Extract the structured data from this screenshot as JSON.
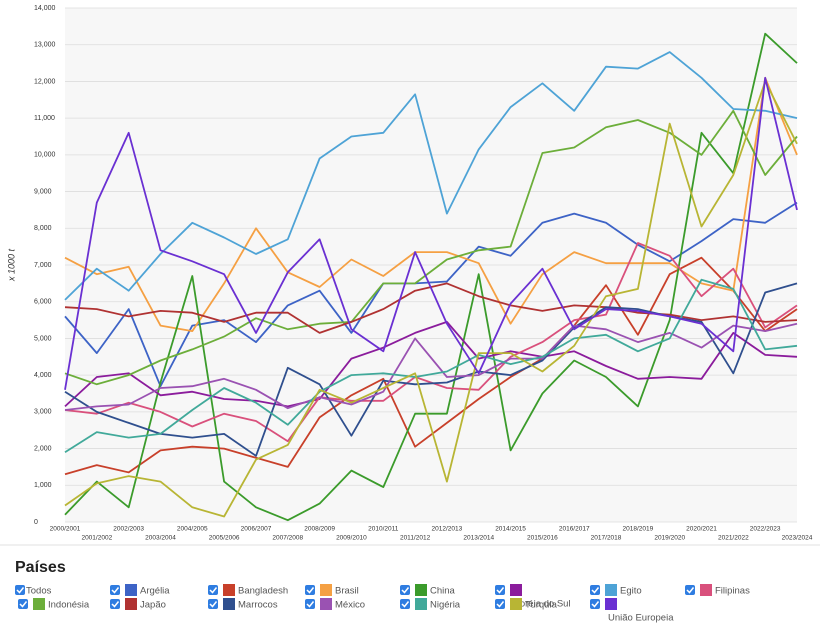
{
  "chart_data": {
    "type": "line",
    "y_label": "x 1000 t",
    "categories": [
      "2000/2001",
      "2001/2002",
      "2002/2003",
      "2003/2004",
      "2004/2005",
      "2005/2006",
      "2006/2007",
      "2007/2008",
      "2008/2009",
      "2009/2010",
      "2010/2011",
      "2011/2012",
      "2012/2013",
      "2013/2014",
      "2014/2015",
      "2015/2016",
      "2016/2017",
      "2017/2018",
      "2018/2019",
      "2019/2020",
      "2020/2021",
      "2021/2022",
      "2022/2023",
      "2023/2024"
    ],
    "ylim": [
      0,
      14000
    ],
    "yticks": [
      0,
      {
        "value": 1000,
        "label": "1,000"
      },
      {
        "value": 2000,
        "label": "2,000"
      },
      {
        "value": 3000,
        "label": "3,000"
      },
      {
        "value": 4000,
        "label": "4,000"
      },
      {
        "value": 5000,
        "label": "5,000"
      },
      {
        "value": 6000,
        "label": "6,000"
      },
      {
        "value": 7000,
        "label": "7,000"
      },
      {
        "value": 8000,
        "label": "8,000"
      },
      {
        "value": 9000,
        "label": "9,000"
      },
      {
        "value": 10000,
        "label": "10,000"
      },
      {
        "value": 11000,
        "label": "11,000"
      },
      {
        "value": 12000,
        "label": "12,000"
      },
      {
        "value": 13000,
        "label": "13,000"
      },
      {
        "value": 14000,
        "label": "14,000"
      }
    ],
    "grid": true,
    "legend_title": "Países",
    "legend_all": "Todos",
    "series": [
      {
        "name": "Argélia",
        "color": "#3d63c6",
        "values": [
          5600,
          4600,
          5800,
          3700,
          5350,
          5500,
          4900,
          5900,
          6300,
          5150,
          6500,
          6500,
          6550,
          7500,
          7250,
          8150,
          8400,
          8150,
          7550,
          7100,
          7650,
          8250,
          8150,
          8700
        ]
      },
      {
        "name": "Bangladesh",
        "color": "#c8402a",
        "values": [
          1300,
          1550,
          1350,
          1950,
          2050,
          2000,
          1750,
          1500,
          2850,
          3450,
          3900,
          2050,
          2700,
          3350,
          3950,
          4450,
          5350,
          6450,
          5100,
          6750,
          7200,
          6300,
          5200,
          5800
        ]
      },
      {
        "name": "Brasil",
        "color": "#f5a043",
        "values": [
          7200,
          6750,
          6950,
          5350,
          5200,
          6500,
          8000,
          6800,
          6400,
          7150,
          6700,
          7350,
          7350,
          7050,
          5400,
          6750,
          7350,
          7050,
          7050,
          7050,
          6500,
          6300,
          12100,
          10000
        ]
      },
      {
        "name": "China",
        "color": "#3b9b2b",
        "values": [
          200,
          1100,
          400,
          3800,
          6700,
          1100,
          400,
          50,
          500,
          1400,
          950,
          2950,
          2950,
          6750,
          1950,
          3500,
          4400,
          3950,
          3150,
          5500,
          10600,
          9500,
          13300,
          12500
        ]
      },
      {
        "name": "Coréia do Sul",
        "color": "#8b1c9c",
        "values": [
          3150,
          3950,
          4050,
          3450,
          3550,
          3350,
          3300,
          3150,
          3350,
          4450,
          4750,
          5150,
          5450,
          4450,
          4650,
          4500,
          4650,
          4250,
          3900,
          3950,
          3900,
          5150,
          4550,
          4500
        ]
      },
      {
        "name": "Egito",
        "color": "#4ea3d6",
        "values": [
          6050,
          6900,
          6300,
          7300,
          8150,
          7750,
          7300,
          7700,
          9900,
          10500,
          10600,
          11650,
          8400,
          10150,
          11300,
          11950,
          11200,
          12400,
          12350,
          12800,
          12100,
          11250,
          11200,
          11000
        ]
      },
      {
        "name": "Filipinas",
        "color": "#d9507c",
        "values": [
          3050,
          2950,
          3250,
          3000,
          2600,
          2950,
          2750,
          2200,
          3400,
          3300,
          3300,
          3950,
          3650,
          3600,
          4500,
          4900,
          5500,
          5650,
          7600,
          7250,
          6150,
          6900,
          5300,
          5900
        ]
      },
      {
        "name": "Indonésia",
        "color": "#6cae3a",
        "values": [
          4050,
          3750,
          4000,
          4400,
          4700,
          5050,
          5550,
          5250,
          5400,
          5450,
          6500,
          6500,
          7150,
          7400,
          7500,
          10050,
          10200,
          10750,
          10950,
          10600,
          10000,
          11200,
          9450,
          10500
        ]
      },
      {
        "name": "Japão",
        "color": "#b03232",
        "values": [
          5850,
          5800,
          5600,
          5750,
          5700,
          5450,
          5700,
          5700,
          5150,
          5450,
          5800,
          6300,
          6500,
          6150,
          5900,
          5750,
          5900,
          5850,
          5700,
          5650,
          5500,
          5600,
          5450,
          5500
        ]
      },
      {
        "name": "Marrocos",
        "color": "#2f4f8e",
        "values": [
          3550,
          3000,
          2700,
          2400,
          2300,
          2400,
          1800,
          4200,
          3750,
          2350,
          3850,
          3750,
          3800,
          4100,
          4000,
          4400,
          5300,
          5850,
          5800,
          5600,
          5450,
          4050,
          6250,
          6500
        ]
      },
      {
        "name": "México",
        "color": "#9a52b2",
        "values": [
          3050,
          3150,
          3200,
          3650,
          3700,
          3900,
          3600,
          3100,
          3400,
          3200,
          3550,
          5000,
          3950,
          4000,
          4450,
          4450,
          5350,
          5250,
          4900,
          5150,
          4750,
          5350,
          5200,
          5400
        ]
      },
      {
        "name": "Nigéria",
        "color": "#41a99a",
        "values": [
          1900,
          2450,
          2300,
          2400,
          3050,
          3650,
          3250,
          2650,
          3550,
          4000,
          4050,
          3950,
          4100,
          4550,
          4300,
          4500,
          5000,
          5100,
          4650,
          5000,
          6600,
          6350,
          4700,
          4800
        ]
      },
      {
        "name": "Turquia",
        "color": "#b8b534",
        "values": [
          450,
          1050,
          1250,
          1100,
          400,
          150,
          1700,
          2100,
          3600,
          3250,
          3650,
          4050,
          1100,
          4600,
          4600,
          4100,
          4800,
          6150,
          6350,
          10850,
          8050,
          9450,
          12000,
          10300
        ]
      },
      {
        "name": "União Europeia",
        "color": "#6a30d2",
        "values": [
          3600,
          8700,
          10600,
          7400,
          7100,
          6750,
          5150,
          6800,
          7700,
          5250,
          4650,
          7350,
          5400,
          4050,
          5950,
          6900,
          5250,
          5800,
          5750,
          5600,
          5400,
          4650,
          12100,
          8500
        ]
      }
    ]
  }
}
